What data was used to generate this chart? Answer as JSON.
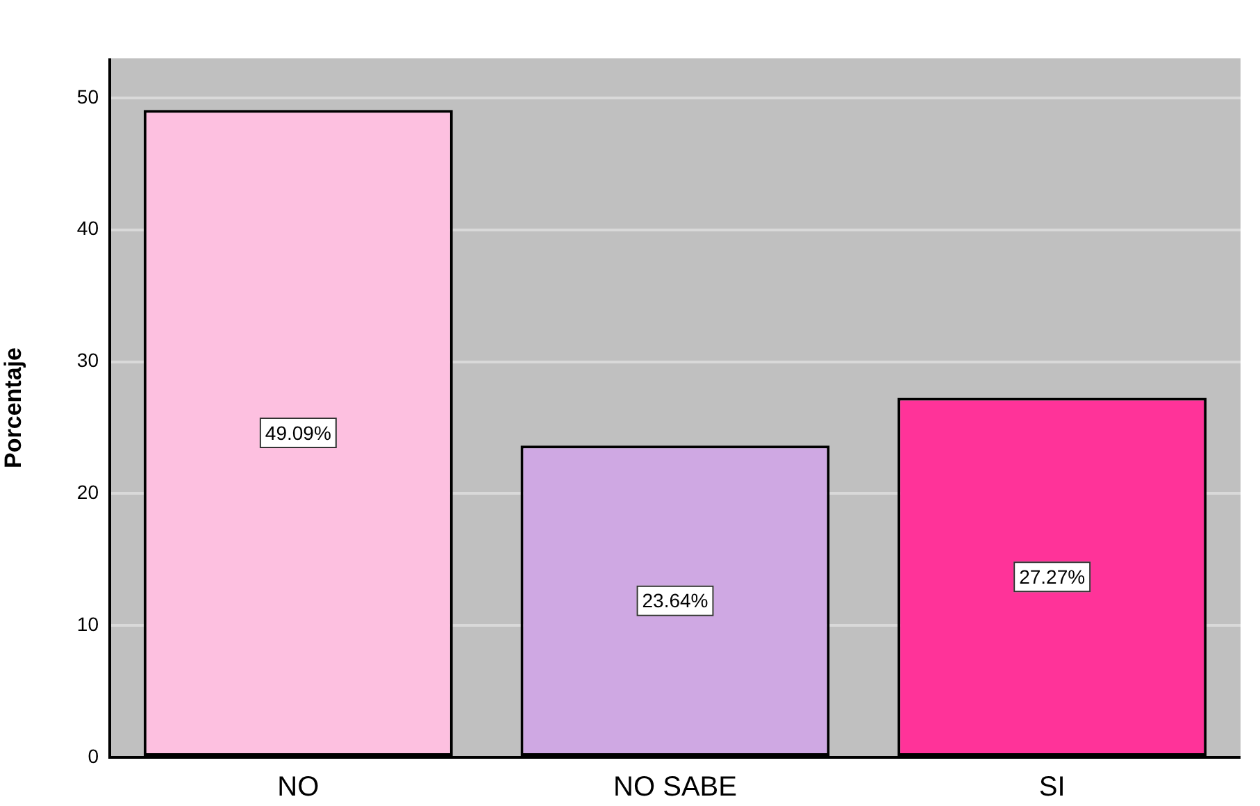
{
  "chart_data": {
    "type": "bar",
    "ylabel": "Porcentaje",
    "categories": [
      "NO",
      "NO SABE",
      "SI"
    ],
    "values": [
      49.09,
      23.64,
      27.27
    ],
    "colors": [
      "#fdc0e0",
      "#cfa8e3",
      "#ff3399"
    ],
    "value_labels": [
      "49.09%",
      "23.64%",
      "27.27%"
    ],
    "ylim": [
      0,
      53
    ],
    "yticks": [
      0,
      10,
      20,
      30,
      40,
      50
    ],
    "grid": "y",
    "legend": false
  }
}
